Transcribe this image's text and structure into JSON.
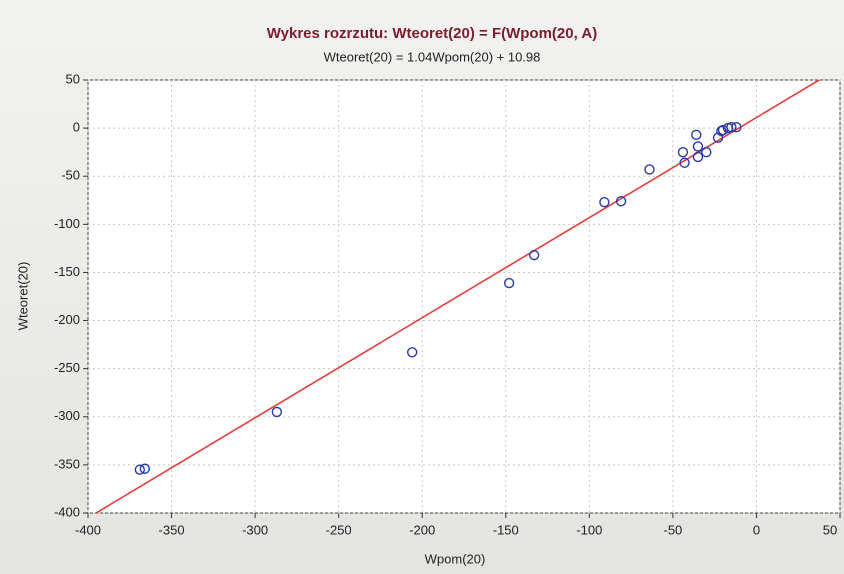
{
  "chart_data": {
    "type": "scatter",
    "title": "Wykres rozrzutu:  Wteoret(20) = F(Wpom(20, A)",
    "subtitle": "Wteoret(20) = 1.04Wpom(20) + 10.98",
    "x_label": "Wpom(20)",
    "y_label": "Wteoret(20)",
    "fit": {
      "slope": 1.04,
      "intercept": 10.98,
      "color": "#e0403a"
    },
    "series": [
      {
        "color": "#2a3aa8",
        "x": [
          -369,
          -366,
          -287,
          -206,
          -148,
          -133,
          -91,
          -81,
          -64,
          -44,
          -43,
          -36,
          -35,
          -35,
          -30,
          -23,
          -21,
          -20,
          -17,
          -15,
          -12
        ],
        "values": [
          -355,
          -354,
          -295,
          -233,
          -161,
          -132,
          -77,
          -76,
          -43,
          -25,
          -36,
          -7,
          -19,
          -30,
          -25,
          -10,
          -3,
          -2,
          0,
          1,
          1
        ]
      }
    ],
    "xlim": [
      -400,
      50
    ],
    "ylim": [
      -400,
      50
    ],
    "xticks": [
      -400,
      -350,
      -300,
      -250,
      -200,
      -150,
      -100,
      -50,
      0,
      50
    ],
    "yticks": [
      -400,
      -350,
      -300,
      -250,
      -200,
      -150,
      -100,
      -50,
      0,
      50
    ],
    "grid": true
  }
}
